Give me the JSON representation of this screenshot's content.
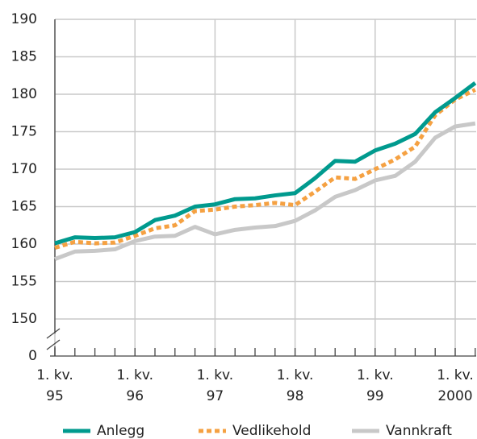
{
  "chart_data": {
    "type": "line",
    "categories": [
      [
        "1. kv.",
        "95"
      ],
      null,
      null,
      null,
      [
        "1. kv.",
        "96"
      ],
      null,
      null,
      null,
      [
        "1. kv.",
        "97"
      ],
      null,
      null,
      null,
      [
        "1. kv.",
        "98"
      ],
      null,
      null,
      null,
      [
        "1. kv.",
        "99"
      ],
      null,
      null,
      null,
      [
        "1. kv.",
        "2000"
      ],
      null
    ],
    "series": [
      {
        "name": "Anlegg",
        "color": "#009a8e",
        "dashed": false,
        "values": [
          160.1,
          160.9,
          160.8,
          160.9,
          161.6,
          163.2,
          163.8,
          165.0,
          165.3,
          166.0,
          166.1,
          166.5,
          166.8,
          168.8,
          171.1,
          171.0,
          172.5,
          173.4,
          174.7,
          177.6,
          179.5,
          181.5
        ]
      },
      {
        "name": "Vedlikehold",
        "color": "#f5a142",
        "dashed": true,
        "values": [
          159.5,
          160.3,
          160.1,
          160.2,
          161.1,
          162.1,
          162.5,
          164.4,
          164.6,
          165.0,
          165.2,
          165.5,
          165.2,
          167.0,
          168.9,
          168.7,
          170.0,
          171.3,
          173.0,
          177.2,
          179.3,
          180.6
        ]
      },
      {
        "name": "Vannkraft",
        "color": "#c8c8c8",
        "dashed": false,
        "values": [
          158.0,
          159.0,
          159.1,
          159.3,
          160.4,
          161.0,
          161.1,
          162.3,
          161.3,
          161.9,
          162.2,
          162.4,
          163.1,
          164.5,
          166.3,
          167.2,
          168.5,
          169.1,
          171.0,
          174.2,
          175.7,
          176.1
        ]
      }
    ],
    "ylim": [
      0,
      190
    ],
    "axis_break": [
      0,
      150
    ],
    "yticks": [
      0,
      150,
      155,
      160,
      165,
      170,
      175,
      180,
      185,
      190
    ],
    "grid": true,
    "legend": "bottom"
  }
}
